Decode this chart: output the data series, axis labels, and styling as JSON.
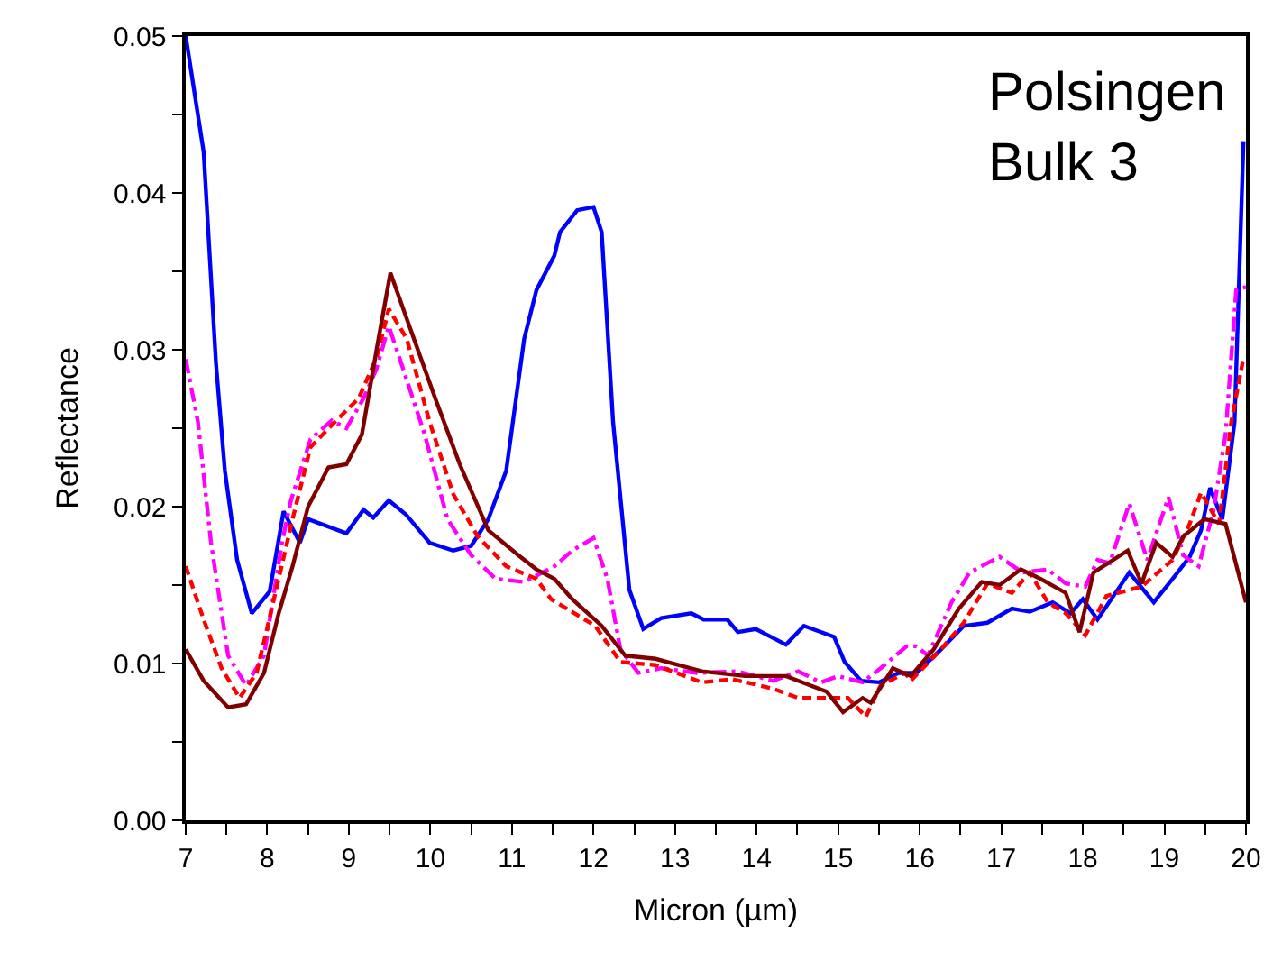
{
  "chart_data": {
    "type": "line",
    "xlabel": "Micron (µm)",
    "ylabel": "Reflectance",
    "annotations": [
      "Polsingen\nBulk 3"
    ],
    "xlim": [
      7,
      20
    ],
    "ylim": [
      0,
      0.05
    ],
    "xticks": [
      7,
      {
        "value": 7.5,
        "label": null
      },
      8,
      {
        "value": 8.5,
        "label": null
      },
      9,
      {
        "value": 9.5,
        "label": null
      },
      10,
      {
        "value": 10.5,
        "label": null
      },
      11,
      {
        "value": 11.5,
        "label": null
      },
      12,
      {
        "value": 12.5,
        "label": null
      },
      13,
      {
        "value": 13.5,
        "label": null
      },
      14,
      {
        "value": 14.5,
        "label": null
      },
      15,
      {
        "value": 15.5,
        "label": null
      },
      16,
      {
        "value": 16.5,
        "label": null
      },
      17,
      {
        "value": 17.5,
        "label": null
      },
      18,
      {
        "value": 18.5,
        "label": null
      },
      19,
      {
        "value": 19.5,
        "label": null
      },
      20
    ],
    "yticks": [
      {
        "value": 0,
        "label": "0.00"
      },
      {
        "value": 0.005,
        "label": null
      },
      {
        "value": 0.01,
        "label": "0.01"
      },
      {
        "value": 0.015,
        "label": null
      },
      {
        "value": 0.02,
        "label": "0.02"
      },
      {
        "value": 0.025,
        "label": null
      },
      {
        "value": 0.03,
        "label": "0.03"
      },
      {
        "value": 0.035,
        "label": null
      },
      {
        "value": 0.04,
        "label": "0.04"
      },
      {
        "value": 0.045,
        "label": null
      },
      {
        "value": 0.05,
        "label": "0.05"
      }
    ],
    "marker": "none",
    "series": [
      {
        "color": "#0000ff",
        "line_style": "solid",
        "x": [
          7.0,
          7.22,
          7.37,
          7.48,
          7.63,
          7.81,
          8.03,
          8.2,
          8.4,
          8.5,
          8.97,
          9.18,
          9.3,
          9.49,
          9.7,
          9.99,
          10.28,
          10.5,
          10.71,
          10.93,
          11.15,
          11.3,
          11.52,
          11.59,
          11.8,
          12.0,
          12.1,
          12.24,
          12.44,
          12.61,
          12.83,
          13.2,
          13.35,
          13.64,
          13.77,
          13.99,
          14.36,
          14.58,
          14.95,
          15.08,
          15.28,
          15.5,
          15.74,
          15.96,
          16.26,
          16.54,
          16.83,
          17.13,
          17.35,
          17.63,
          17.85,
          18.0,
          18.18,
          18.57,
          18.87,
          19.1,
          19.31,
          19.45,
          19.56,
          19.71,
          19.86,
          19.97
        ],
        "values": [
          0.05,
          0.0426,
          0.0292,
          0.0223,
          0.0166,
          0.0132,
          0.0146,
          0.0197,
          0.0177,
          0.0192,
          0.0183,
          0.0198,
          0.0193,
          0.0204,
          0.0195,
          0.0177,
          0.0172,
          0.0175,
          0.0192,
          0.0223,
          0.0307,
          0.0338,
          0.036,
          0.0375,
          0.0389,
          0.0391,
          0.0375,
          0.0254,
          0.0147,
          0.0122,
          0.0129,
          0.0132,
          0.0128,
          0.0128,
          0.012,
          0.0122,
          0.0112,
          0.0124,
          0.0117,
          0.0101,
          0.0089,
          0.0088,
          0.0094,
          0.0094,
          0.0109,
          0.0124,
          0.0126,
          0.0135,
          0.0133,
          0.0139,
          0.0132,
          0.0141,
          0.0128,
          0.0158,
          0.0139,
          0.0154,
          0.0168,
          0.0185,
          0.0212,
          0.0192,
          0.0254,
          0.0433
        ]
      },
      {
        "color": "#ff00ff",
        "line_style": "dashdot",
        "x": [
          7.0,
          7.15,
          7.31,
          7.52,
          7.74,
          7.96,
          8.18,
          8.29,
          8.53,
          8.79,
          8.97,
          9.18,
          9.34,
          9.49,
          9.62,
          9.93,
          10.21,
          10.5,
          10.8,
          11.15,
          11.52,
          11.74,
          12.0,
          12.17,
          12.33,
          12.55,
          12.83,
          13.27,
          13.77,
          14.2,
          14.51,
          14.79,
          15.0,
          15.3,
          15.52,
          15.84,
          15.96,
          16.1,
          16.39,
          16.61,
          16.83,
          16.98,
          17.26,
          17.57,
          17.79,
          18.03,
          18.18,
          18.33,
          18.57,
          18.79,
          19.05,
          19.23,
          19.42,
          19.6,
          19.75,
          19.88,
          20.0
        ],
        "values": [
          0.0294,
          0.0254,
          0.0177,
          0.0105,
          0.0086,
          0.0105,
          0.0177,
          0.0204,
          0.0243,
          0.0255,
          0.025,
          0.0269,
          0.0288,
          0.0315,
          0.0295,
          0.0246,
          0.0192,
          0.0169,
          0.0154,
          0.0152,
          0.0162,
          0.0172,
          0.018,
          0.0154,
          0.0109,
          0.0094,
          0.0097,
          0.0094,
          0.0095,
          0.0089,
          0.0095,
          0.0088,
          0.0092,
          0.0088,
          0.0097,
          0.0111,
          0.0111,
          0.0105,
          0.0139,
          0.0158,
          0.0164,
          0.0168,
          0.0158,
          0.016,
          0.0151,
          0.0149,
          0.0166,
          0.0164,
          0.0202,
          0.0166,
          0.0206,
          0.0169,
          0.0162,
          0.0197,
          0.0246,
          0.0338,
          0.034
        ]
      },
      {
        "color": "#ff0000",
        "line_style": "dashed",
        "x": [
          7.0,
          7.22,
          7.44,
          7.66,
          7.87,
          8.14,
          8.31,
          8.53,
          8.83,
          9.12,
          9.34,
          9.49,
          9.71,
          9.99,
          10.28,
          10.58,
          10.93,
          11.3,
          11.48,
          12.02,
          12.33,
          12.76,
          13.33,
          13.7,
          14.2,
          14.51,
          14.86,
          15.12,
          15.34,
          15.52,
          15.82,
          15.89,
          16.26,
          16.54,
          16.83,
          17.13,
          17.35,
          17.57,
          17.79,
          18.03,
          18.29,
          18.72,
          19.1,
          19.31,
          19.45,
          19.67,
          19.82,
          19.97
        ],
        "values": [
          0.0162,
          0.0128,
          0.0097,
          0.0078,
          0.0094,
          0.0154,
          0.0192,
          0.0238,
          0.0254,
          0.0269,
          0.0295,
          0.0326,
          0.0307,
          0.0254,
          0.0208,
          0.0181,
          0.0162,
          0.0154,
          0.0141,
          0.0124,
          0.0101,
          0.0099,
          0.0088,
          0.009,
          0.0084,
          0.0078,
          0.0078,
          0.0078,
          0.0066,
          0.0086,
          0.0094,
          0.0089,
          0.0109,
          0.0126,
          0.0151,
          0.0145,
          0.0158,
          0.0139,
          0.0132,
          0.0118,
          0.0143,
          0.0149,
          0.0166,
          0.0189,
          0.0209,
          0.0189,
          0.0254,
          0.0295
        ]
      },
      {
        "color": "#800000",
        "line_style": "solid",
        "x": [
          7.0,
          7.22,
          7.52,
          7.74,
          7.96,
          8.14,
          8.31,
          8.5,
          8.75,
          8.97,
          9.16,
          9.34,
          9.51,
          9.77,
          10.06,
          10.36,
          10.71,
          11.08,
          11.3,
          11.52,
          11.74,
          12.1,
          12.39,
          12.76,
          13.33,
          13.86,
          14.36,
          14.86,
          15.06,
          15.3,
          15.4,
          15.67,
          15.89,
          16.17,
          16.48,
          16.76,
          16.98,
          17.24,
          17.48,
          17.79,
          17.96,
          18.13,
          18.55,
          18.72,
          18.9,
          19.1,
          19.23,
          19.49,
          19.75,
          20.0
        ],
        "values": [
          0.0109,
          0.0089,
          0.0072,
          0.0074,
          0.0094,
          0.0132,
          0.0162,
          0.02,
          0.0225,
          0.0227,
          0.0246,
          0.03,
          0.0349,
          0.0311,
          0.0269,
          0.0227,
          0.0185,
          0.0169,
          0.016,
          0.0154,
          0.0141,
          0.0124,
          0.0105,
          0.0103,
          0.0095,
          0.0092,
          0.0092,
          0.0082,
          0.0069,
          0.0078,
          0.0075,
          0.0097,
          0.0092,
          0.0109,
          0.0135,
          0.0152,
          0.015,
          0.016,
          0.0154,
          0.0145,
          0.012,
          0.0158,
          0.0172,
          0.0151,
          0.0177,
          0.0168,
          0.0181,
          0.0192,
          0.0189,
          0.0139
        ]
      }
    ]
  }
}
